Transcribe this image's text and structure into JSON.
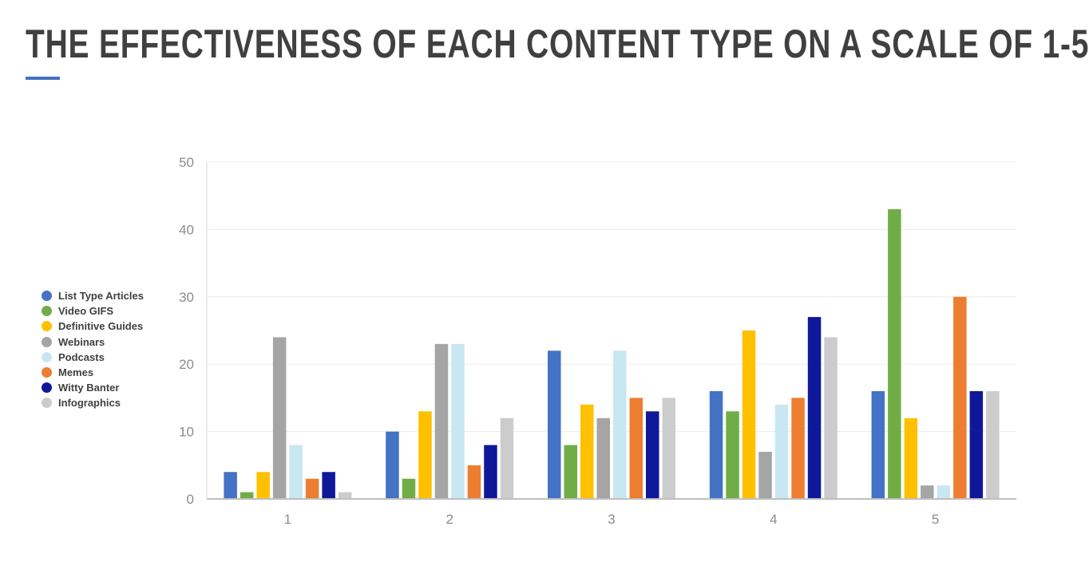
{
  "title": "THE EFFECTIVENESS OF EACH CONTENT TYPE ON A SCALE OF 1-5",
  "colors": {
    "accent": "#4472C4",
    "title_text": "#404040",
    "axis_text": "#8c8c8c"
  },
  "chart_data": {
    "type": "bar",
    "title": "",
    "xlabel": "",
    "ylabel": "",
    "categories": [
      "1",
      "2",
      "3",
      "4",
      "5"
    ],
    "ylim": [
      0,
      50
    ],
    "yticks": [
      0,
      10,
      20,
      30,
      40,
      50
    ],
    "grid": true,
    "legend_position": "left",
    "series": [
      {
        "name": "List Type Articles",
        "color": "#4472C4",
        "values": [
          4,
          10,
          22,
          16,
          16
        ]
      },
      {
        "name": "Video GIFS",
        "color": "#70AD47",
        "values": [
          1,
          3,
          8,
          13,
          43
        ]
      },
      {
        "name": "Definitive Guides",
        "color": "#FFC000",
        "values": [
          4,
          13,
          14,
          25,
          12
        ]
      },
      {
        "name": "Webinars",
        "color": "#A5A5A5",
        "values": [
          24,
          23,
          12,
          7,
          2
        ]
      },
      {
        "name": "Podcasts",
        "color": "#C9E7F1",
        "values": [
          8,
          23,
          22,
          14,
          2
        ]
      },
      {
        "name": "Memes",
        "color": "#ED7D31",
        "values": [
          3,
          5,
          15,
          15,
          30
        ]
      },
      {
        "name": "Witty Banter",
        "color": "#10189A",
        "values": [
          4,
          8,
          13,
          27,
          16
        ]
      },
      {
        "name": "Infographics",
        "color": "#CCCCCC",
        "values": [
          1,
          12,
          15,
          24,
          16
        ]
      }
    ]
  }
}
